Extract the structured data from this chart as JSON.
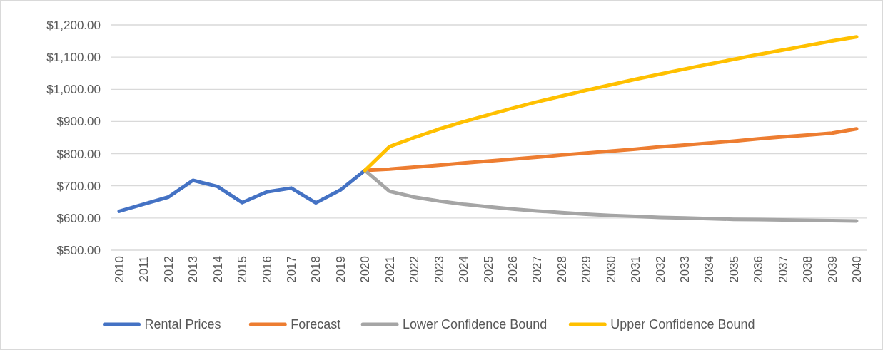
{
  "chart_data": {
    "type": "line",
    "categories": [
      "2010",
      "2011",
      "2012",
      "2013",
      "2014",
      "2015",
      "2016",
      "2017",
      "2018",
      "2019",
      "2020",
      "2021",
      "2022",
      "2023",
      "2024",
      "2025",
      "2026",
      "2027",
      "2028",
      "2029",
      "2030",
      "2031",
      "2032",
      "2033",
      "2034",
      "2035",
      "2036",
      "2037",
      "2038",
      "2039",
      "2040"
    ],
    "series": [
      {
        "name": "Rental Prices",
        "color": "#4472c4",
        "values": [
          621,
          643,
          665,
          717,
          698,
          648,
          681,
          693,
          647,
          687,
          748,
          null,
          null,
          null,
          null,
          null,
          null,
          null,
          null,
          null,
          null,
          null,
          null,
          null,
          null,
          null,
          null,
          null,
          null,
          null,
          null
        ]
      },
      {
        "name": "Forecast",
        "color": "#ed7d31",
        "values": [
          null,
          null,
          null,
          null,
          null,
          null,
          null,
          null,
          null,
          null,
          748,
          752,
          758,
          764,
          771,
          777,
          783,
          789,
          796,
          802,
          808,
          814,
          821,
          827,
          833,
          839,
          846,
          852,
          858,
          864,
          877
        ]
      },
      {
        "name": "Lower Confidence Bound",
        "color": "#a5a5a5",
        "values": [
          null,
          null,
          null,
          null,
          null,
          null,
          null,
          null,
          null,
          null,
          748,
          683,
          665,
          653,
          643,
          635,
          628,
          622,
          617,
          612,
          608,
          605,
          602,
          600,
          598,
          596,
          595,
          594,
          593,
          592,
          591
        ]
      },
      {
        "name": "Upper Confidence Bound",
        "color": "#ffc000",
        "values": [
          null,
          null,
          null,
          null,
          null,
          null,
          null,
          null,
          null,
          null,
          748,
          822,
          850,
          876,
          899,
          920,
          941,
          961,
          979,
          997,
          1014,
          1031,
          1047,
          1063,
          1078,
          1093,
          1108,
          1122,
          1136,
          1150,
          1163
        ]
      }
    ],
    "ylim": [
      500,
      1200
    ],
    "yticks": [
      {
        "value": 500,
        "label": "$500.00"
      },
      {
        "value": 600,
        "label": "$600.00"
      },
      {
        "value": 700,
        "label": "$700.00"
      },
      {
        "value": 800,
        "label": "$800.00"
      },
      {
        "value": 900,
        "label": "$900.00"
      },
      {
        "value": 1000,
        "label": "$1,000.00"
      },
      {
        "value": 1100,
        "label": "$1,100.00"
      },
      {
        "value": 1200,
        "label": "$1,200.00"
      }
    ],
    "grid": "y",
    "legend": "bottom",
    "marker": "none",
    "line_style": "solid"
  }
}
